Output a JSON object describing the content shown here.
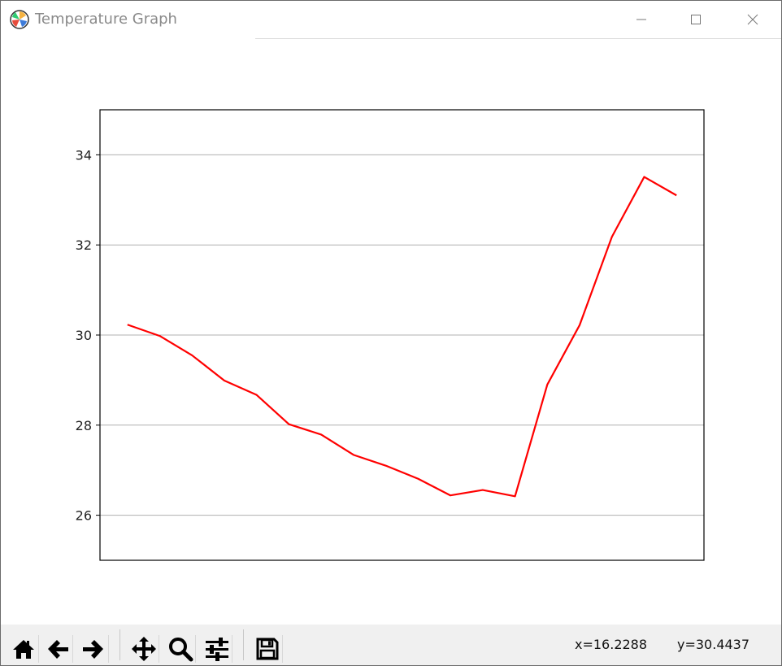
{
  "window": {
    "title": "Temperature Graph",
    "icon": "matplotlib-icon",
    "controls": [
      "minimize-icon",
      "maximize-icon",
      "close-icon"
    ]
  },
  "chart_data": {
    "type": "line",
    "title": "",
    "xlabel": "",
    "ylabel": "",
    "x": [
      0,
      1,
      2,
      3,
      4,
      5,
      6,
      7,
      8,
      9,
      10,
      11,
      12,
      13,
      14,
      15,
      16,
      17
    ],
    "series": [
      {
        "color": "#ff0000",
        "values": [
          30.23,
          29.98,
          29.55,
          28.99,
          28.67,
          28.02,
          27.79,
          27.34,
          27.1,
          26.81,
          26.44,
          26.56,
          26.42,
          28.9,
          30.22,
          32.18,
          33.51,
          33.1
        ]
      }
    ],
    "yticks": [
      "26",
      "28",
      "30",
      "32",
      "34"
    ],
    "ylim": [
      25,
      35
    ],
    "xlim": [
      -0.85,
      17.85
    ],
    "grid": "y",
    "legend": "none"
  },
  "toolbar": {
    "buttons": [
      {
        "icon": "home-icon"
      },
      {
        "icon": "back-arrow-icon"
      },
      {
        "icon": "forward-arrow-icon"
      },
      {
        "icon": "pan-icon"
      },
      {
        "icon": "zoom-icon"
      },
      {
        "icon": "configure-subplots-icon"
      },
      {
        "icon": "save-icon"
      }
    ],
    "x_readout": "x=16.2288",
    "y_readout": "y=30.4437"
  }
}
